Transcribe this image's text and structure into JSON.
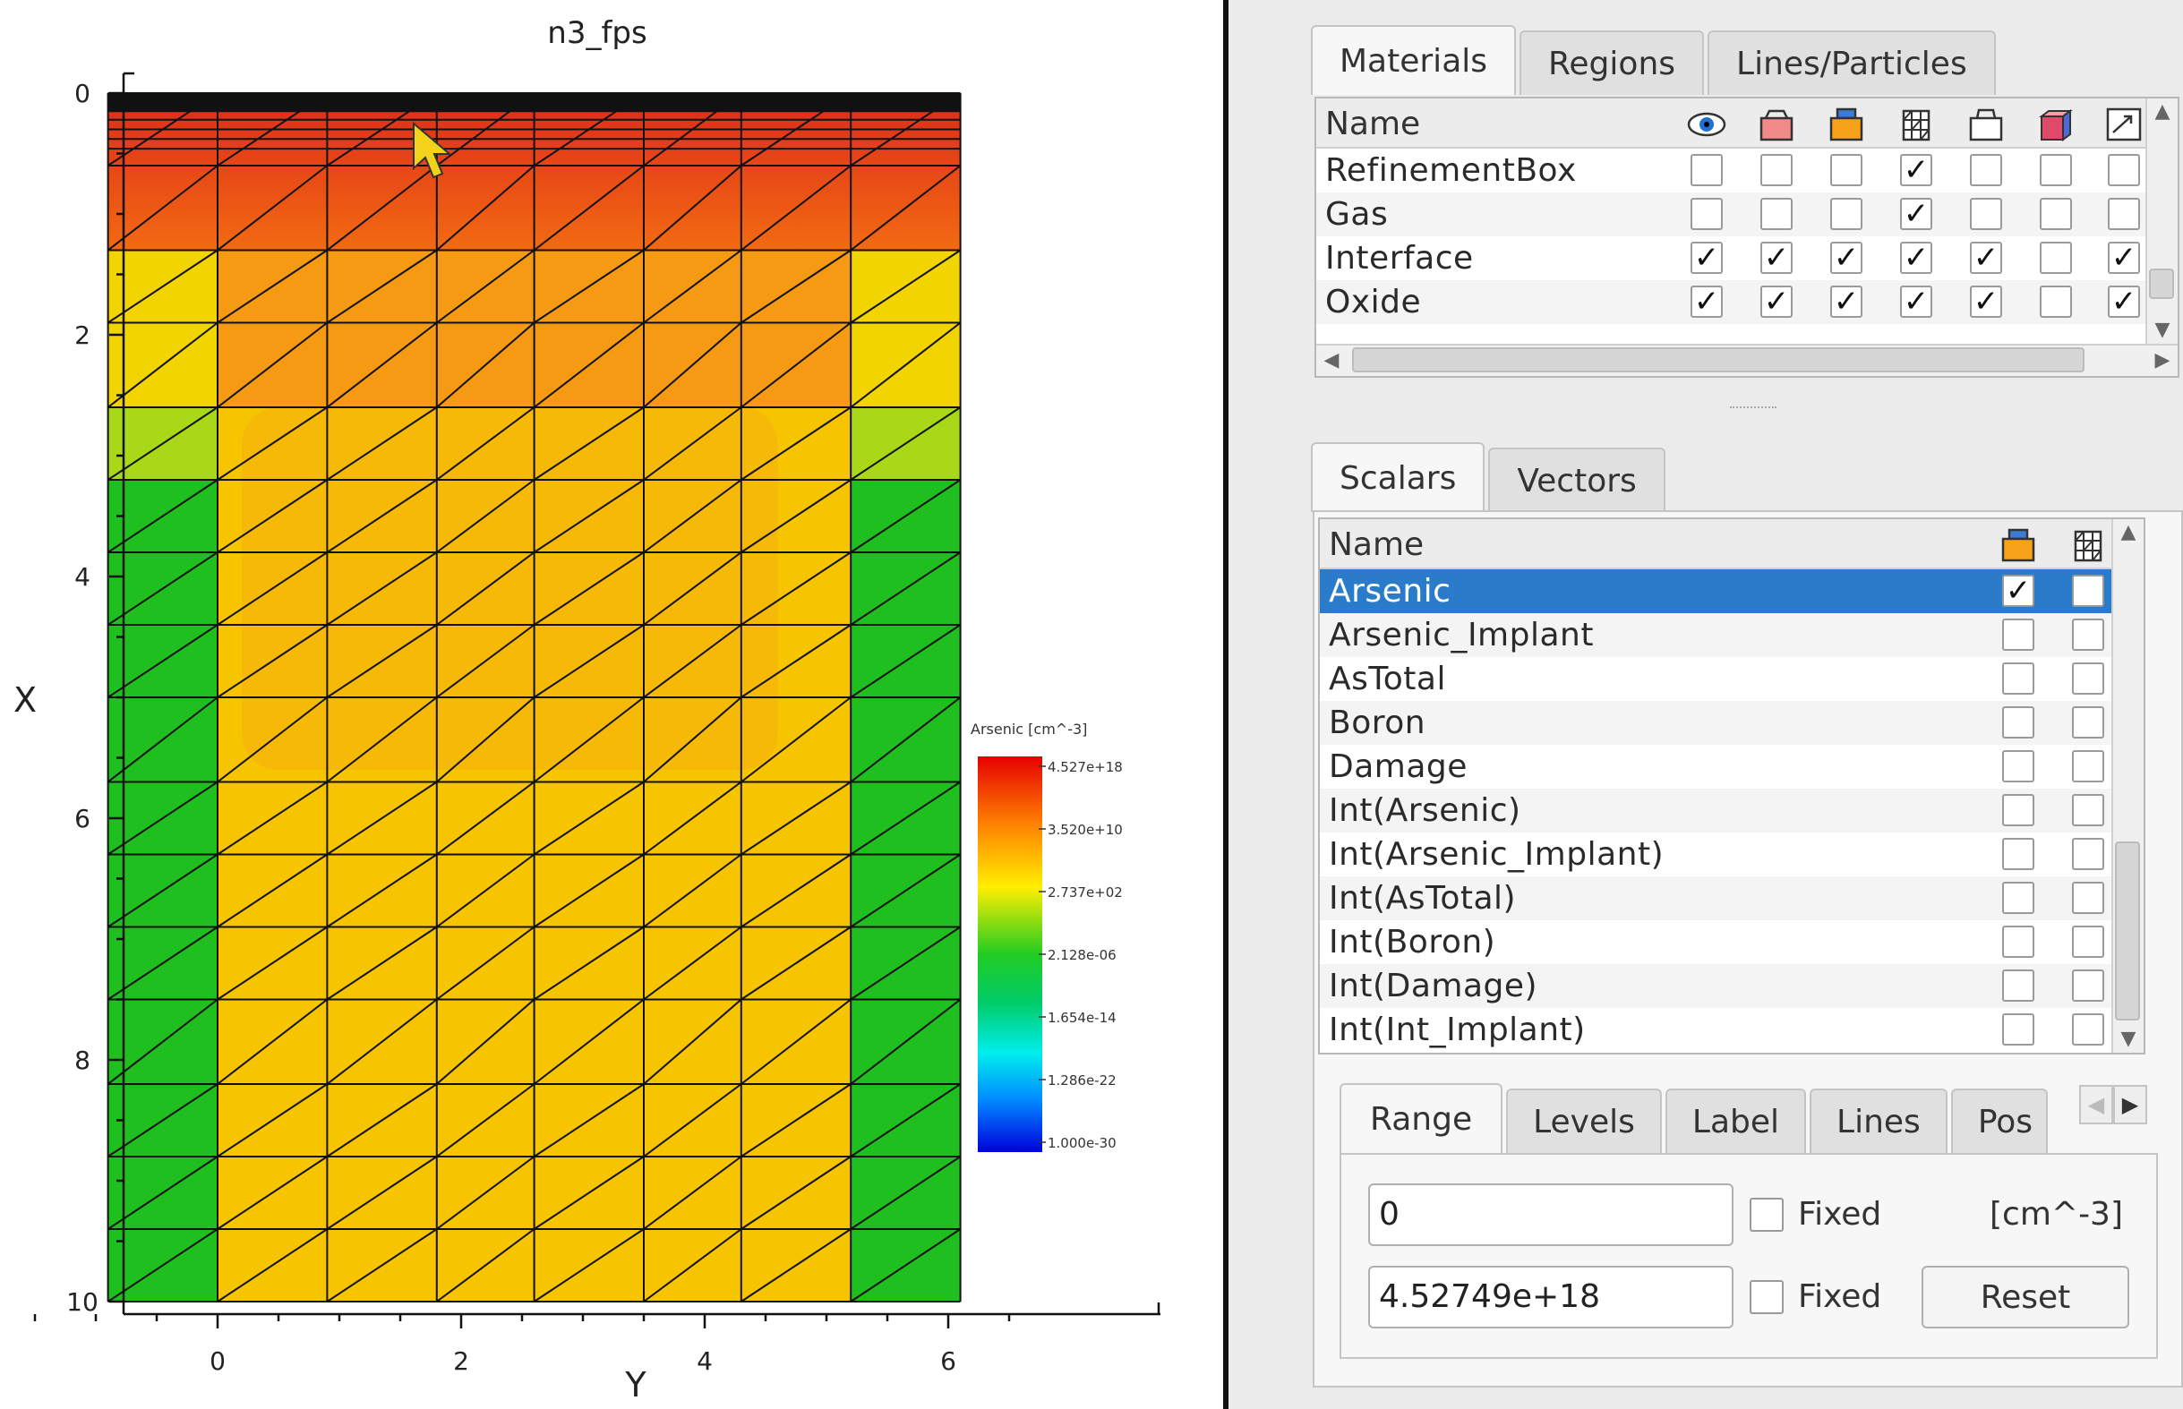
{
  "plot": {
    "title": "n3_fps",
    "xlabel": "Y",
    "ylabel": "X",
    "x_ticks": [
      "0",
      "2",
      "4",
      "6"
    ],
    "y_ticks": [
      "0",
      "2",
      "4",
      "6",
      "8",
      "10"
    ],
    "legend_title": "Arsenic [cm^-3]",
    "legend_values": [
      "4.527e+18",
      "3.520e+10",
      "2.737e+02",
      "2.128e-06",
      "1.654e-14",
      "1.286e-22",
      "1.000e-30"
    ]
  },
  "chart_data": {
    "type": "heatmap",
    "title": "n3_fps",
    "xlabel": "Y",
    "ylabel": "X",
    "xlim": [
      -1.5,
      6.7
    ],
    "ylim": [
      0,
      10
    ],
    "y_inverted": true,
    "scalar": "Arsenic",
    "colorbar": {
      "label": "Arsenic [cm^-3]",
      "ticks": [
        4.527e+18,
        35200000000.0,
        273.7,
        2.128e-06,
        1.654e-14,
        1.286e-22,
        1e-30
      ]
    },
    "regions": [
      {
        "y": [
          -0.9,
          6.1
        ],
        "x": [
          0,
          0.15
        ],
        "level": "max"
      },
      {
        "y": [
          -0.9,
          6.1
        ],
        "x": [
          0.15,
          1.3
        ],
        "level": "high"
      },
      {
        "y": [
          -0.9,
          6.1
        ],
        "x": [
          1.3,
          2.6
        ],
        "level": "orange-yellow"
      },
      {
        "y": [
          0,
          5.2
        ],
        "x": [
          2.6,
          10
        ],
        "level": "yellow"
      },
      {
        "y": [
          -0.9,
          0
        ],
        "x": [
          3.2,
          10
        ],
        "level": "low"
      },
      {
        "y": [
          5.2,
          6.1
        ],
        "x": [
          3.2,
          10
        ],
        "level": "low"
      }
    ]
  },
  "materials": {
    "tabs": [
      "Materials",
      "Regions",
      "Lines/Particles"
    ],
    "header_name": "Name",
    "columns": [
      "eye-icon",
      "box-red-icon",
      "box-orange-icon",
      "mesh-icon",
      "box-outline-icon",
      "box-3d-icon",
      "vector-icon"
    ],
    "rows": [
      {
        "name": "RefinementBox",
        "checks": [
          false,
          false,
          false,
          true,
          false,
          false,
          false
        ]
      },
      {
        "name": "Gas",
        "checks": [
          false,
          false,
          false,
          true,
          false,
          false,
          false
        ]
      },
      {
        "name": "Interface",
        "checks": [
          true,
          true,
          true,
          true,
          true,
          false,
          true
        ]
      },
      {
        "name": "Oxide",
        "checks": [
          true,
          true,
          true,
          true,
          true,
          false,
          true
        ]
      }
    ]
  },
  "scalars": {
    "tabs": [
      "Scalars",
      "Vectors"
    ],
    "header_name": "Name",
    "columns": [
      "box-orange-icon",
      "mesh-icon"
    ],
    "rows": [
      {
        "name": "Arsenic",
        "checks": [
          true,
          false
        ],
        "selected": true
      },
      {
        "name": "Arsenic_Implant",
        "checks": [
          false,
          false
        ]
      },
      {
        "name": "AsTotal",
        "checks": [
          false,
          false
        ]
      },
      {
        "name": "Boron",
        "checks": [
          false,
          false
        ]
      },
      {
        "name": "Damage",
        "checks": [
          false,
          false
        ]
      },
      {
        "name": "Int(Arsenic)",
        "checks": [
          false,
          false
        ]
      },
      {
        "name": "Int(Arsenic_Implant)",
        "checks": [
          false,
          false
        ]
      },
      {
        "name": "Int(AsTotal)",
        "checks": [
          false,
          false
        ]
      },
      {
        "name": "Int(Boron)",
        "checks": [
          false,
          false
        ]
      },
      {
        "name": "Int(Damage)",
        "checks": [
          false,
          false
        ]
      },
      {
        "name": "Int(Int_Implant)",
        "checks": [
          false,
          false
        ]
      }
    ]
  },
  "range": {
    "tabs": [
      "Range",
      "Levels",
      "Label",
      "Lines",
      "Pos"
    ],
    "min_value": "0",
    "max_value": "4.52749e+18",
    "fixed_label": "Fixed",
    "unit": "[cm^-3]",
    "reset_label": "Reset"
  },
  "colors": {
    "selection": "#2a7ccb",
    "high": "#e8401c",
    "mid": "#f7c100",
    "low": "#1fbf1f"
  }
}
